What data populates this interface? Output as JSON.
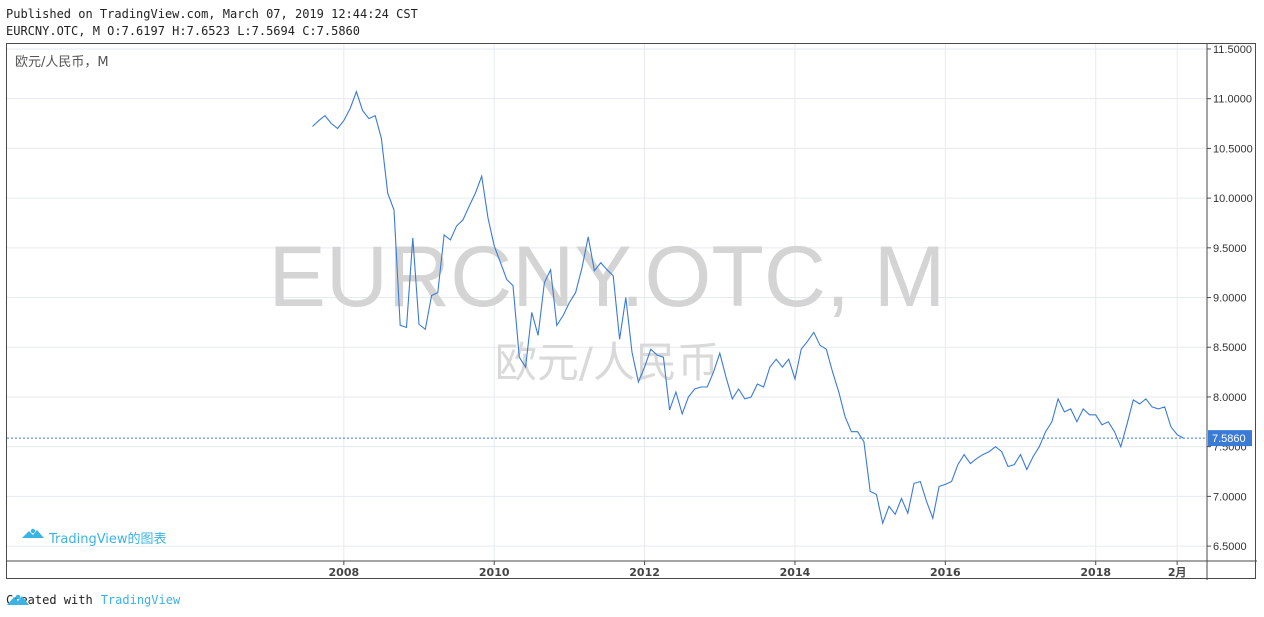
{
  "header": {
    "published": "Published on TradingView.com, March 07, 2019 12:44:24 CST",
    "ohlc": "EURCNY.OTC, M O:7.6197 H:7.6523 L:7.5694 C:7.5860"
  },
  "footer": {
    "created_with": "Created with",
    "brand": "TradingView"
  },
  "chart_data": {
    "type": "line",
    "title": "欧元/人民币，M",
    "watermark_symbol": "EURCNY.OTC, M",
    "watermark_name": "欧元/人民币",
    "branding": "TradingView的图表",
    "last_value_label": "7.5860",
    "line_color": "#3a7bd5",
    "ylim": [
      6.35,
      11.55
    ],
    "y_ticks": [
      "6.5000",
      "7.0000",
      "7.5000",
      "8.0000",
      "8.5000",
      "9.0000",
      "9.5000",
      "10.0000",
      "10.5000",
      "11.0000",
      "11.5000"
    ],
    "x_ticks": [
      {
        "label": "2008",
        "t": 2008.0
      },
      {
        "label": "2010",
        "t": 2010.0
      },
      {
        "label": "2012",
        "t": 2012.0
      },
      {
        "label": "2014",
        "t": 2014.0
      },
      {
        "label": "2016",
        "t": 2016.0
      },
      {
        "label": "2018",
        "t": 2018.0
      },
      {
        "label": "2月",
        "t": 2019.083
      }
    ],
    "xlim": [
      2003.52,
      2019.48
    ],
    "grid": true,
    "series": [
      {
        "values": [
          [
            2007.583,
            10.72
          ],
          [
            2007.667,
            10.78
          ],
          [
            2007.75,
            10.83
          ],
          [
            2007.833,
            10.75
          ],
          [
            2007.917,
            10.7
          ],
          [
            2008.0,
            10.78
          ],
          [
            2008.083,
            10.9
          ],
          [
            2008.167,
            11.07
          ],
          [
            2008.25,
            10.88
          ],
          [
            2008.333,
            10.8
          ],
          [
            2008.417,
            10.83
          ],
          [
            2008.5,
            10.6
          ],
          [
            2008.583,
            10.05
          ],
          [
            2008.667,
            9.88
          ],
          [
            2008.75,
            8.72
          ],
          [
            2008.833,
            8.7
          ],
          [
            2008.917,
            9.6
          ],
          [
            2009.0,
            8.73
          ],
          [
            2009.083,
            8.68
          ],
          [
            2009.167,
            9.02
          ],
          [
            2009.25,
            9.05
          ],
          [
            2009.333,
            9.63
          ],
          [
            2009.417,
            9.58
          ],
          [
            2009.5,
            9.72
          ],
          [
            2009.583,
            9.78
          ],
          [
            2009.667,
            9.92
          ],
          [
            2009.75,
            10.05
          ],
          [
            2009.833,
            10.22
          ],
          [
            2009.917,
            9.8
          ],
          [
            2010.0,
            9.52
          ],
          [
            2010.083,
            9.35
          ],
          [
            2010.167,
            9.18
          ],
          [
            2010.25,
            9.12
          ],
          [
            2010.333,
            8.4
          ],
          [
            2010.417,
            8.3
          ],
          [
            2010.5,
            8.85
          ],
          [
            2010.583,
            8.62
          ],
          [
            2010.667,
            9.15
          ],
          [
            2010.75,
            9.28
          ],
          [
            2010.833,
            8.72
          ],
          [
            2010.917,
            8.82
          ],
          [
            2011.0,
            8.95
          ],
          [
            2011.083,
            9.05
          ],
          [
            2011.167,
            9.3
          ],
          [
            2011.25,
            9.61
          ],
          [
            2011.333,
            9.27
          ],
          [
            2011.417,
            9.35
          ],
          [
            2011.5,
            9.28
          ],
          [
            2011.583,
            9.22
          ],
          [
            2011.667,
            8.58
          ],
          [
            2011.75,
            9.0
          ],
          [
            2011.833,
            8.45
          ],
          [
            2011.917,
            8.15
          ],
          [
            2012.0,
            8.3
          ],
          [
            2012.083,
            8.48
          ],
          [
            2012.167,
            8.42
          ],
          [
            2012.25,
            8.4
          ],
          [
            2012.333,
            7.87
          ],
          [
            2012.417,
            8.05
          ],
          [
            2012.5,
            7.83
          ],
          [
            2012.583,
            8.0
          ],
          [
            2012.667,
            8.08
          ],
          [
            2012.75,
            8.1
          ],
          [
            2012.833,
            8.1
          ],
          [
            2012.917,
            8.25
          ],
          [
            2013.0,
            8.44
          ],
          [
            2013.083,
            8.2
          ],
          [
            2013.167,
            7.98
          ],
          [
            2013.25,
            8.08
          ],
          [
            2013.333,
            7.98
          ],
          [
            2013.417,
            8.0
          ],
          [
            2013.5,
            8.13
          ],
          [
            2013.583,
            8.1
          ],
          [
            2013.667,
            8.3
          ],
          [
            2013.75,
            8.38
          ],
          [
            2013.833,
            8.3
          ],
          [
            2013.917,
            8.38
          ],
          [
            2014.0,
            8.18
          ],
          [
            2014.083,
            8.48
          ],
          [
            2014.167,
            8.56
          ],
          [
            2014.25,
            8.65
          ],
          [
            2014.333,
            8.52
          ],
          [
            2014.417,
            8.48
          ],
          [
            2014.5,
            8.25
          ],
          [
            2014.583,
            8.05
          ],
          [
            2014.667,
            7.8
          ],
          [
            2014.75,
            7.65
          ],
          [
            2014.833,
            7.65
          ],
          [
            2014.917,
            7.55
          ],
          [
            2015.0,
            7.05
          ],
          [
            2015.083,
            7.02
          ],
          [
            2015.167,
            6.73
          ],
          [
            2015.25,
            6.9
          ],
          [
            2015.333,
            6.82
          ],
          [
            2015.417,
            6.98
          ],
          [
            2015.5,
            6.83
          ],
          [
            2015.583,
            7.13
          ],
          [
            2015.667,
            7.15
          ],
          [
            2015.75,
            6.95
          ],
          [
            2015.833,
            6.78
          ],
          [
            2015.917,
            7.1
          ],
          [
            2016.0,
            7.12
          ],
          [
            2016.083,
            7.15
          ],
          [
            2016.167,
            7.32
          ],
          [
            2016.25,
            7.42
          ],
          [
            2016.333,
            7.33
          ],
          [
            2016.417,
            7.38
          ],
          [
            2016.5,
            7.42
          ],
          [
            2016.583,
            7.45
          ],
          [
            2016.667,
            7.5
          ],
          [
            2016.75,
            7.45
          ],
          [
            2016.833,
            7.3
          ],
          [
            2016.917,
            7.32
          ],
          [
            2017.0,
            7.42
          ],
          [
            2017.083,
            7.27
          ],
          [
            2017.167,
            7.4
          ],
          [
            2017.25,
            7.5
          ],
          [
            2017.333,
            7.65
          ],
          [
            2017.417,
            7.75
          ],
          [
            2017.5,
            7.98
          ],
          [
            2017.583,
            7.85
          ],
          [
            2017.667,
            7.88
          ],
          [
            2017.75,
            7.75
          ],
          [
            2017.833,
            7.88
          ],
          [
            2017.917,
            7.82
          ],
          [
            2018.0,
            7.82
          ],
          [
            2018.083,
            7.72
          ],
          [
            2018.167,
            7.75
          ],
          [
            2018.25,
            7.65
          ],
          [
            2018.333,
            7.5
          ],
          [
            2018.417,
            7.73
          ],
          [
            2018.5,
            7.97
          ],
          [
            2018.583,
            7.93
          ],
          [
            2018.667,
            7.98
          ],
          [
            2018.75,
            7.9
          ],
          [
            2018.833,
            7.88
          ],
          [
            2018.917,
            7.9
          ],
          [
            2019.0,
            7.7
          ],
          [
            2019.083,
            7.62
          ],
          [
            2019.167,
            7.586
          ]
        ]
      }
    ]
  }
}
